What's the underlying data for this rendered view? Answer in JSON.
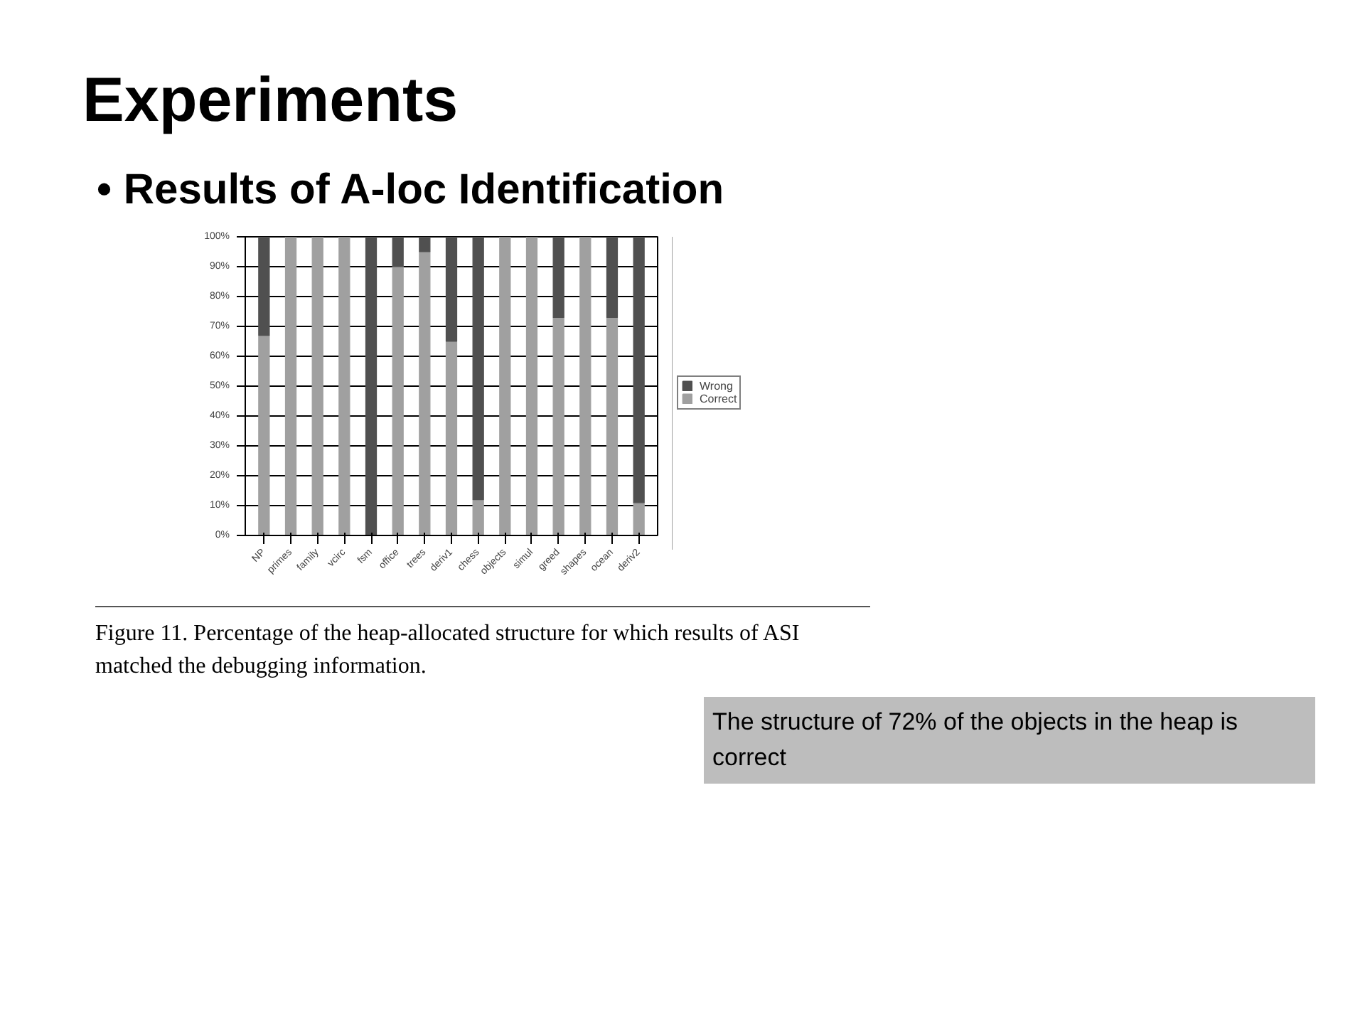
{
  "chart_data": {
    "type": "bar",
    "title": "Experiments",
    "subtitle": "• Results of A-loc Identification",
    "categories": [
      "NP",
      "primes",
      "family",
      "vcirc",
      "fsm",
      "office",
      "trees",
      "deriv1",
      "chess",
      "objects",
      "simul",
      "greed",
      "shapes",
      "ocean",
      "deriv2"
    ],
    "stacked": true,
    "series": [
      {
        "name": "Correct",
        "color": "#a0a0a0",
        "values": [
          67,
          100,
          100,
          100,
          0,
          90,
          95,
          65,
          12,
          100,
          100,
          73,
          100,
          73,
          11
        ]
      },
      {
        "name": "Wrong",
        "color": "#505050",
        "values": [
          33,
          0,
          0,
          0,
          100,
          10,
          5,
          35,
          88,
          0,
          0,
          27,
          0,
          27,
          89
        ]
      }
    ],
    "ylim": [
      0,
      100
    ],
    "yticks": [
      {
        "value": 0,
        "label": "0%"
      },
      {
        "value": 10,
        "label": "10%"
      },
      {
        "value": 20,
        "label": "20%"
      },
      {
        "value": 30,
        "label": "30%"
      },
      {
        "value": 40,
        "label": "40%"
      },
      {
        "value": 50,
        "label": "50%"
      },
      {
        "value": 60,
        "label": "60%"
      },
      {
        "value": 70,
        "label": "70%"
      },
      {
        "value": 80,
        "label": "80%"
      },
      {
        "value": 90,
        "label": "90%"
      },
      {
        "value": 100,
        "label": "100%"
      }
    ],
    "grid": "y",
    "legend": "right",
    "annotations": [
      "Figure 11. Percentage of the heap-allocated structure for which results of ASI matched the debugging information.",
      "The structure of 72% of the objects in the heap is correct"
    ]
  }
}
